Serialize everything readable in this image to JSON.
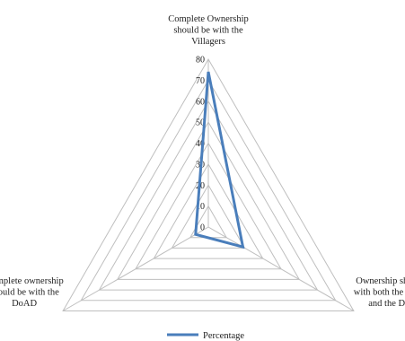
{
  "chart_data": {
    "type": "radar",
    "categories": [
      [
        "Complete Ownership",
        "should be with the",
        "Villagers"
      ],
      [
        "Ownership should be",
        "with both the villagers",
        "and the DoAD"
      ],
      [
        "Complete ownership",
        "should be with the",
        "DoAD"
      ]
    ],
    "series": [
      {
        "name": "Percentage",
        "values": [
          74,
          19,
          7
        ],
        "color": "#4a7ebb"
      }
    ],
    "ticks": [
      "0",
      "10",
      "20",
      "30",
      "40",
      "50",
      "60",
      "70",
      "80"
    ],
    "rlim": [
      0,
      80
    ],
    "grid": true,
    "legend": "bottom",
    "legend_label": "Percentage"
  }
}
